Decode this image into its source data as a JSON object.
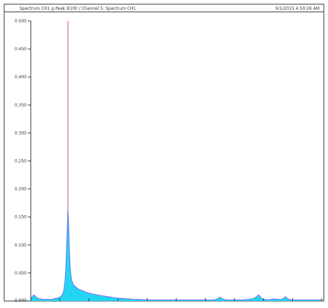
{
  "header": {
    "title": "Spectrum CH1 g Peak  B100 / Channel 5: Spectrum CH1",
    "timestamp": "9/1/2015 4:50:26 AM"
  },
  "colors": {
    "fill": "#22d6f3",
    "line": "#7a70e8",
    "marker": "#e04a4a",
    "frame": "#333333",
    "background": "#ffffff"
  },
  "chart_data": {
    "type": "area",
    "title": "",
    "xlabel": "",
    "ylabel": "",
    "xlim": [
      0,
      400
    ],
    "ylim": [
      0,
      0.5
    ],
    "y_ticks": [
      0.0,
      0.05,
      0.1,
      0.15,
      0.2,
      0.25,
      0.3,
      0.35,
      0.4,
      0.45,
      0.5
    ],
    "y_tick_labels": [
      "0.000",
      "0.050",
      "0.100",
      "0.150",
      "0.200",
      "0.250",
      "0.300",
      "0.350",
      "0.400",
      "0.450",
      "0.500"
    ],
    "x_ticks": [
      0,
      40,
      80,
      120,
      160,
      200,
      240,
      280,
      320,
      360,
      400
    ],
    "grid": false,
    "marker_x": 51,
    "series": [
      {
        "x": [
          0,
          2,
          4,
          6,
          8,
          10,
          12,
          14,
          16,
          18,
          20,
          22,
          24,
          26,
          28,
          30,
          32,
          34,
          36,
          38,
          40,
          42,
          44,
          45,
          46,
          47,
          48,
          49,
          50,
          51,
          52,
          53,
          54,
          55,
          56,
          58,
          60,
          62,
          64,
          66,
          68,
          70,
          72,
          74,
          76,
          78,
          80,
          84,
          88,
          92,
          96,
          100,
          105,
          110,
          115,
          120,
          125,
          130,
          135,
          140,
          150,
          160,
          170,
          180,
          190,
          200,
          210,
          220,
          230,
          240,
          250,
          255,
          258,
          260,
          262,
          265,
          270,
          280,
          290,
          300,
          305,
          310,
          313,
          315,
          317,
          320,
          325,
          330,
          335,
          340,
          345,
          348,
          350,
          352,
          355,
          360,
          370,
          380,
          390,
          400
        ],
        "values": [
          0.004,
          0.008,
          0.011,
          0.009,
          0.006,
          0.005,
          0.004,
          0.004,
          0.003,
          0.003,
          0.003,
          0.003,
          0.003,
          0.003,
          0.003,
          0.003,
          0.004,
          0.005,
          0.005,
          0.006,
          0.007,
          0.009,
          0.013,
          0.017,
          0.024,
          0.036,
          0.055,
          0.085,
          0.125,
          0.165,
          0.14,
          0.095,
          0.065,
          0.048,
          0.039,
          0.031,
          0.027,
          0.025,
          0.023,
          0.021,
          0.02,
          0.019,
          0.018,
          0.017,
          0.016,
          0.015,
          0.014,
          0.013,
          0.012,
          0.011,
          0.01,
          0.009,
          0.008,
          0.007,
          0.006,
          0.005,
          0.005,
          0.004,
          0.004,
          0.003,
          0.003,
          0.002,
          0.002,
          0.002,
          0.002,
          0.002,
          0.002,
          0.002,
          0.002,
          0.002,
          0.002,
          0.003,
          0.005,
          0.007,
          0.005,
          0.003,
          0.002,
          0.002,
          0.002,
          0.003,
          0.004,
          0.007,
          0.011,
          0.009,
          0.005,
          0.003,
          0.002,
          0.003,
          0.004,
          0.003,
          0.003,
          0.005,
          0.008,
          0.005,
          0.003,
          0.002,
          0.002,
          0.002,
          0.002,
          0.002
        ]
      }
    ]
  }
}
